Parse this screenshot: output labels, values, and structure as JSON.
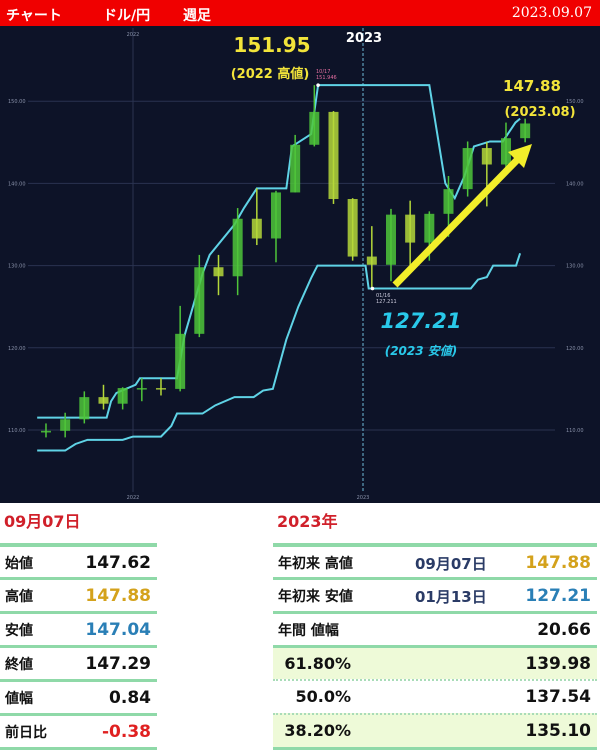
{
  "header": {
    "title": "チャート",
    "pair": "ドル/円",
    "timeframe": "週足",
    "date": "2023.09.07"
  },
  "colors": {
    "header_bg": "#f00000",
    "chart_bg": "#0d1328",
    "channel": "#5fd3e6",
    "candle_up": "#4fc53a",
    "candle_down": "#b5d83a",
    "arrow": "#f2ee2a",
    "high_label": "#f2e43a",
    "low_label": "#29c9ea",
    "high_value": "#d4a21c",
    "low_value": "#2a7fb6",
    "negative": "#e02020"
  },
  "chart_data": {
    "type": "candlestick",
    "title": "",
    "ylim": [
      100,
      155
    ],
    "y_ticks": [
      "110.00",
      "120.00",
      "130.00",
      "140.00",
      "150.00"
    ],
    "x_ticks": [
      "2022",
      "2023"
    ],
    "top_year_label": "2023",
    "grid": true,
    "candles": [
      {
        "date": "2021-08",
        "open": 109.7,
        "high": 110.8,
        "low": 109.1,
        "close": 109.9
      },
      {
        "date": "2021-09",
        "open": 109.9,
        "high": 112.1,
        "low": 109.1,
        "close": 111.3
      },
      {
        "date": "2021-10",
        "open": 111.3,
        "high": 114.7,
        "low": 110.8,
        "close": 114.0
      },
      {
        "date": "2021-11",
        "open": 114.0,
        "high": 115.5,
        "low": 112.5,
        "close": 113.2
      },
      {
        "date": "2021-12",
        "open": 113.2,
        "high": 115.2,
        "low": 112.5,
        "close": 115.1
      },
      {
        "date": "2022-01",
        "open": 115.1,
        "high": 116.3,
        "low": 113.5,
        "close": 115.1
      },
      {
        "date": "2022-02",
        "open": 115.1,
        "high": 116.3,
        "low": 114.2,
        "close": 115.0
      },
      {
        "date": "2022-03",
        "open": 115.0,
        "high": 125.1,
        "low": 114.7,
        "close": 121.7
      },
      {
        "date": "2022-04",
        "open": 121.7,
        "high": 131.3,
        "low": 121.3,
        "close": 129.8
      },
      {
        "date": "2022-05",
        "open": 129.8,
        "high": 131.3,
        "low": 126.4,
        "close": 128.7
      },
      {
        "date": "2022-06",
        "open": 128.7,
        "high": 137.0,
        "low": 126.4,
        "close": 135.7
      },
      {
        "date": "2022-07",
        "open": 135.7,
        "high": 139.4,
        "low": 132.5,
        "close": 133.3
      },
      {
        "date": "2022-08",
        "open": 133.3,
        "high": 139.1,
        "low": 130.4,
        "close": 138.9
      },
      {
        "date": "2022-09",
        "open": 138.9,
        "high": 145.9,
        "low": 138.9,
        "close": 144.7
      },
      {
        "date": "2022-10",
        "open": 144.7,
        "high": 151.95,
        "low": 144.5,
        "close": 148.7
      },
      {
        "date": "2022-11",
        "open": 148.7,
        "high": 148.8,
        "low": 137.5,
        "close": 138.1
      },
      {
        "date": "2022-12",
        "open": 138.1,
        "high": 138.2,
        "low": 130.6,
        "close": 131.1
      },
      {
        "date": "2023-01",
        "open": 131.1,
        "high": 134.8,
        "low": 127.21,
        "close": 130.1
      },
      {
        "date": "2023-02",
        "open": 130.1,
        "high": 136.9,
        "low": 128.1,
        "close": 136.2
      },
      {
        "date": "2023-03",
        "open": 136.2,
        "high": 137.9,
        "low": 129.6,
        "close": 132.8
      },
      {
        "date": "2023-04",
        "open": 132.8,
        "high": 136.6,
        "low": 130.6,
        "close": 136.3
      },
      {
        "date": "2023-05",
        "open": 136.3,
        "high": 140.9,
        "low": 133.5,
        "close": 139.3
      },
      {
        "date": "2023-06",
        "open": 139.3,
        "high": 145.1,
        "low": 138.4,
        "close": 144.3
      },
      {
        "date": "2023-07",
        "open": 144.3,
        "high": 145.0,
        "low": 137.2,
        "close": 142.3
      },
      {
        "date": "2023-08",
        "open": 142.3,
        "high": 147.4,
        "low": 141.5,
        "close": 145.5
      },
      {
        "date": "2023-09",
        "open": 145.5,
        "high": 147.88,
        "low": 145.0,
        "close": 147.29
      }
    ],
    "channel_upper": [
      [
        "2021-08-01",
        111.5
      ],
      [
        "2021-11-20",
        111.5
      ],
      [
        "2021-11-27",
        113.5
      ],
      [
        "2021-12-05",
        114.5
      ],
      [
        "2022-01-05",
        115.5
      ],
      [
        "2022-01-12",
        116.3
      ],
      [
        "2022-03-10",
        116.3
      ],
      [
        "2022-03-22",
        121.5
      ],
      [
        "2022-04-20",
        129.0
      ],
      [
        "2022-05-01",
        131.3
      ],
      [
        "2022-06-10",
        135.0
      ],
      [
        "2022-06-25",
        137.0
      ],
      [
        "2022-07-15",
        139.4
      ],
      [
        "2022-09-01",
        139.4
      ],
      [
        "2022-09-10",
        144.5
      ],
      [
        "2022-10-10",
        146.0
      ],
      [
        "2022-10-21",
        151.95
      ],
      [
        "2023-04-15",
        151.95
      ],
      [
        "2023-05-10",
        140.0
      ],
      [
        "2023-05-25",
        138.2
      ],
      [
        "2023-06-10",
        140.9
      ],
      [
        "2023-06-25",
        144.5
      ],
      [
        "2023-07-20",
        145.1
      ],
      [
        "2023-08-10",
        145.1
      ],
      [
        "2023-08-30",
        147.4
      ],
      [
        "2023-09-07",
        147.88
      ]
    ],
    "channel_lower": [
      [
        "2021-08-01",
        107.5
      ],
      [
        "2021-09-15",
        107.5
      ],
      [
        "2021-10-01",
        108.3
      ],
      [
        "2021-10-20",
        108.8
      ],
      [
        "2021-12-15",
        108.8
      ],
      [
        "2022-01-01",
        109.2
      ],
      [
        "2022-02-15",
        109.2
      ],
      [
        "2022-03-01",
        110.5
      ],
      [
        "2022-03-10",
        112.0
      ],
      [
        "2022-04-20",
        112.0
      ],
      [
        "2022-05-10",
        113.0
      ],
      [
        "2022-06-10",
        114.0
      ],
      [
        "2022-07-10",
        114.0
      ],
      [
        "2022-07-25",
        114.8
      ],
      [
        "2022-08-10",
        115.0
      ],
      [
        "2022-09-01",
        121.0
      ],
      [
        "2022-09-20",
        125.0
      ],
      [
        "2022-10-10",
        128.5
      ],
      [
        "2022-10-20",
        130.0
      ],
      [
        "2023-01-05",
        130.0
      ],
      [
        "2023-01-10",
        127.21
      ],
      [
        "2023-06-20",
        127.21
      ],
      [
        "2023-07-01",
        128.3
      ],
      [
        "2023-07-15",
        128.6
      ],
      [
        "2023-07-25",
        130.0
      ],
      [
        "2023-08-31",
        130.0
      ],
      [
        "2023-09-07",
        131.5
      ]
    ],
    "annotations": {
      "high_value": "151.95",
      "high_caption": "(2022 高値)",
      "high_marker": "10/17",
      "high_marker_value": "151.946",
      "low_value": "127.21",
      "low_caption": "(2023 安値)",
      "low_marker": "01/16",
      "low_marker_value": "127.211",
      "latest_value": "147.88",
      "latest_caption": "(2023.08)"
    }
  },
  "daily": {
    "title": "09月07日",
    "rows": [
      {
        "label": "始値",
        "value": "147.62"
      },
      {
        "label": "高値",
        "value": "147.88"
      },
      {
        "label": "安値",
        "value": "147.04"
      },
      {
        "label": "終値",
        "value": "147.29"
      },
      {
        "label": "値幅",
        "value": "0.84"
      },
      {
        "label": "前日比",
        "value": "-0.38"
      }
    ]
  },
  "yearly": {
    "title": "2023年",
    "rows": [
      {
        "label": "年初来 高値",
        "date": "09月07日",
        "value": "147.88"
      },
      {
        "label": "年初来 安値",
        "date": "01月13日",
        "value": "127.21"
      },
      {
        "label": "年間 値幅",
        "value": "20.66"
      }
    ],
    "retracements": [
      {
        "pct": "61.80%",
        "value": "139.98"
      },
      {
        "pct": "50.0%",
        "value": "137.54"
      },
      {
        "pct": "38.20%",
        "value": "135.10"
      }
    ]
  }
}
